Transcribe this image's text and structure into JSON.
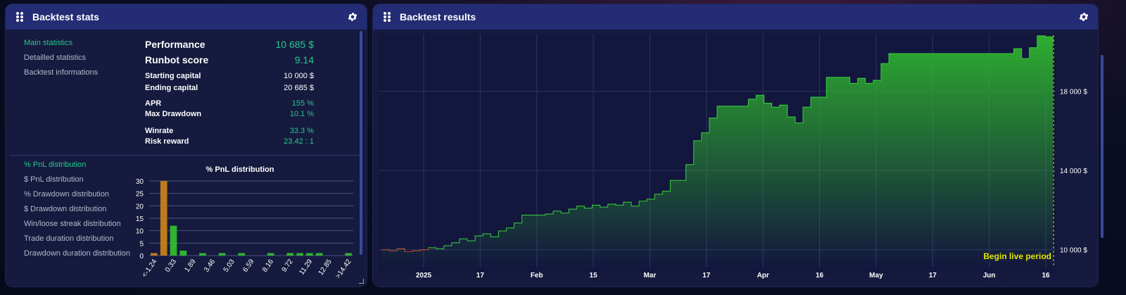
{
  "stats_panel": {
    "title": "Backtest stats",
    "nav_top": [
      "Main statistics",
      "Detailled statistics",
      "Backtest informations"
    ],
    "headline": [
      {
        "label": "Performance",
        "value": "10 685 $"
      },
      {
        "label": "Runbot score",
        "value": "9.14"
      }
    ],
    "rows": [
      {
        "label": "Starting capital",
        "value": "10 000 $"
      },
      {
        "label": "Ending capital",
        "value": "20 685 $"
      },
      {
        "label": "APR",
        "value": "155 %"
      },
      {
        "label": "Max Drawdown",
        "value": "10.1 %"
      },
      {
        "label": "Winrate",
        "value": "33.3 %"
      },
      {
        "label": "Risk reward",
        "value": "23.42 : 1"
      }
    ],
    "nav_bottom": [
      "% PnL distribution",
      "$ PnL distribution",
      "% Drawdown distribution",
      "$ Drawdown distribution",
      "Win/loose streak distribution",
      "Trade duration distribution",
      "Drawdown duration distribution"
    ],
    "colors": {
      "accent": "#27c98f",
      "loss_bar": "#c07a1a",
      "win_bar": "#2fb52f"
    }
  },
  "results_panel": {
    "title": "Backtest results",
    "live_label": "Begin live period",
    "colors": {
      "line": "#38d338",
      "live_marker": "#e6e600",
      "drawdown_line": "#c0392b"
    }
  },
  "chart_data": [
    {
      "type": "bar",
      "title": "% PnL distribution",
      "categories": [
        "<-1.24",
        "-0.45",
        "0.33",
        "1.11",
        "1.89",
        "2.67",
        "3.46",
        "4.24",
        "5.03",
        "5.81",
        "6.59",
        "7.38",
        "8.16",
        "8.94",
        "9.72",
        "10.51",
        "11.29",
        "12.07",
        "12.85",
        "13.64",
        ">14.42"
      ],
      "tick_labels_shown": [
        "<-1.24",
        "0.33",
        "1.89",
        "3.46",
        "5.03",
        "6.59",
        "8.16",
        "9.72",
        "11.29",
        "12.85",
        ">14.42"
      ],
      "values": [
        1,
        30,
        12,
        2,
        0,
        1,
        0,
        1,
        0,
        1,
        0,
        0,
        1,
        0,
        1,
        1,
        1,
        1,
        0,
        0,
        1
      ],
      "loss_categories": 2,
      "ylim": [
        0,
        30
      ],
      "yticks": [
        0,
        5,
        10,
        15,
        20,
        25,
        30
      ],
      "grid": true
    },
    {
      "type": "area",
      "title": "",
      "xlabel": "",
      "ylabel": "",
      "x_ticks": [
        "2025",
        "17",
        "Feb",
        "15",
        "Mar",
        "17",
        "Apr",
        "16",
        "May",
        "17",
        "Jun",
        "16"
      ],
      "y_ticks": [
        "10 000 $",
        "14 000 $",
        "18 000 $"
      ],
      "y_tick_values": [
        10000,
        14000,
        18000
      ],
      "ylim": [
        9100,
        20900
      ],
      "grid": true,
      "series": [
        {
          "x": [
            0,
            2,
            4,
            6,
            8,
            10,
            12,
            14,
            16,
            18,
            20,
            22,
            24,
            26,
            28,
            30,
            32,
            34,
            36,
            38,
            40,
            42,
            44,
            46,
            48,
            50,
            52,
            54,
            56,
            58,
            60,
            62,
            64,
            66,
            68,
            70,
            72,
            74,
            76,
            78,
            80,
            82,
            84,
            86,
            88,
            90,
            92,
            94,
            96,
            98,
            100,
            102,
            104,
            106,
            108,
            110,
            112,
            114,
            116,
            118,
            120,
            122,
            124,
            126,
            128,
            130,
            132,
            134,
            136,
            138,
            140,
            142,
            144,
            146,
            148,
            150,
            152,
            154,
            156,
            158,
            160,
            162,
            164,
            166,
            168,
            170,
            172
          ],
          "y": [
            10000,
            9950,
            10050,
            9900,
            9950,
            10000,
            10100,
            10050,
            10200,
            10350,
            10550,
            10450,
            10700,
            10800,
            10650,
            10950,
            11100,
            11350,
            11750,
            11750,
            11750,
            11800,
            11950,
            11850,
            12050,
            12200,
            12100,
            12250,
            12150,
            12300,
            12250,
            12400,
            12200,
            12450,
            12550,
            12800,
            12950,
            13500,
            13500,
            14300,
            15500,
            15900,
            16650,
            17250,
            17250,
            17250,
            17250,
            17600,
            17800,
            17400,
            17200,
            17300,
            16700,
            16400,
            17200,
            17700,
            17700,
            18700,
            18700,
            18700,
            18400,
            18650,
            18400,
            18550,
            19400,
            19900,
            19900,
            19900,
            19900,
            19900,
            19900,
            19900,
            19900,
            19900,
            19900,
            19900,
            19900,
            19900,
            19900,
            19900,
            19900,
            20150,
            19650,
            20200,
            20800,
            20750,
            20450
          ]
        }
      ]
    }
  ]
}
